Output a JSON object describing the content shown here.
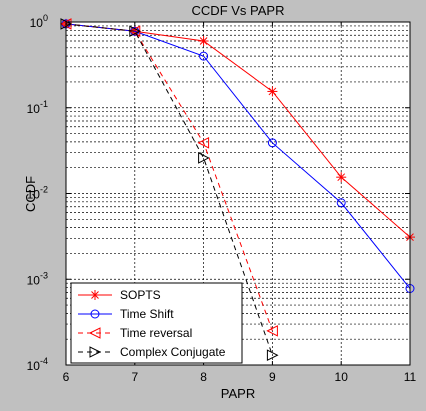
{
  "chart_data": {
    "type": "line",
    "title": "CCDF Vs PAPR",
    "xlabel": "PAPR",
    "ylabel": "CCDF",
    "xlim": [
      6,
      11
    ],
    "ylim": [
      0.0001,
      1
    ],
    "yscale": "log",
    "xticks": [
      6,
      7,
      8,
      9,
      10,
      11
    ],
    "xtick_labels": [
      "6",
      "7",
      "8",
      "9",
      "10",
      "11"
    ],
    "yticks": [
      {
        "value": 1,
        "mantissa": "10",
        "exponent": "0"
      },
      {
        "value": 0.1,
        "mantissa": "10",
        "exponent": "-1"
      },
      {
        "value": 0.01,
        "mantissa": "10",
        "exponent": "-2"
      },
      {
        "value": 0.001,
        "mantissa": "10",
        "exponent": "-3"
      },
      {
        "value": 0.0001,
        "mantissa": "10",
        "exponent": "-4"
      }
    ],
    "grid": true,
    "legend_position": "bottom-left",
    "background_color": "#c0c0c0",
    "axes_color": "#ffffff",
    "series": [
      {
        "name": "SOPTS",
        "color": "#ff0000",
        "linestyle": "solid",
        "marker": "star",
        "x": [
          6,
          7,
          8,
          9,
          10,
          11
        ],
        "y": [
          0.95,
          0.78,
          0.6,
          0.155,
          0.0155,
          0.0031
        ]
      },
      {
        "name": "Time Shift",
        "color": "#0000ff",
        "linestyle": "solid",
        "marker": "circle",
        "x": [
          6,
          7,
          8,
          9,
          10,
          11
        ],
        "y": [
          0.95,
          0.78,
          0.4,
          0.039,
          0.0078,
          0.00078
        ]
      },
      {
        "name": "Time reversal",
        "color": "#ff0000",
        "linestyle": "dashed",
        "marker": "triangle-left",
        "x": [
          6,
          7,
          8,
          9
        ],
        "y": [
          0.95,
          0.78,
          0.039,
          0.00025
        ]
      },
      {
        "name": "Complex Conjugate",
        "color": "#000000",
        "linestyle": "dashed",
        "marker": "triangle-right",
        "x": [
          6,
          7,
          8,
          9
        ],
        "y": [
          0.95,
          0.78,
          0.026,
          0.00013
        ]
      }
    ]
  }
}
